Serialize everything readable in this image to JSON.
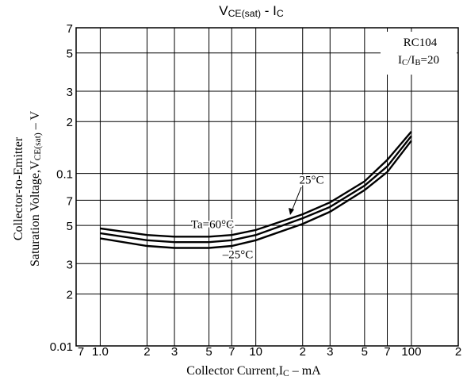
{
  "chart_data": {
    "type": "line",
    "title": [
      "V",
      "CE(sat)",
      "  -  I",
      "C"
    ],
    "x_label": [
      "Collector Current,I",
      "C",
      " – mA"
    ],
    "y_label": [
      [
        "Collector-to-Emitter"
      ],
      [
        "Saturation Voltage,V",
        "CE(sat)",
        " – V"
      ]
    ],
    "annotations": [
      [
        "RC104"
      ],
      [
        "I",
        "C",
        "/I",
        "B",
        "=20"
      ]
    ],
    "x": [
      1,
      2,
      3,
      5,
      7,
      10,
      20,
      30,
      50,
      70,
      100
    ],
    "series": [
      {
        "name": "Ta=60°C",
        "color": "#000000",
        "values": [
          0.048,
          0.044,
          0.043,
          0.043,
          0.044,
          0.047,
          0.058,
          0.068,
          0.09,
          0.12,
          0.175
        ]
      },
      {
        "name": "25°C",
        "color": "#000000",
        "values": [
          0.045,
          0.041,
          0.04,
          0.04,
          0.041,
          0.044,
          0.055,
          0.064,
          0.085,
          0.11,
          0.165
        ]
      },
      {
        "name": "–25°C",
        "color": "#000000",
        "values": [
          0.042,
          0.038,
          0.037,
          0.037,
          0.038,
          0.041,
          0.051,
          0.06,
          0.08,
          0.102,
          0.155
        ]
      }
    ],
    "xlim": [
      0.7,
      200
    ],
    "ylim": [
      0.01,
      0.7
    ],
    "x_log": true,
    "y_log": true,
    "grid": true,
    "xticks": [
      {
        "value": 0.7,
        "label": "7"
      },
      {
        "value": 1,
        "label": "1.0"
      },
      2,
      3,
      5,
      7,
      10,
      {
        "value": 20,
        "label": "2"
      },
      {
        "value": 30,
        "label": "3"
      },
      {
        "value": 50,
        "label": "5"
      },
      {
        "value": 70,
        "label": "7"
      },
      100,
      {
        "value": 200,
        "label": "2"
      }
    ],
    "yticks": [
      0.01,
      {
        "value": 0.02,
        "label": "2"
      },
      {
        "value": 0.03,
        "label": "3"
      },
      {
        "value": 0.05,
        "label": "5"
      },
      {
        "value": 0.07,
        "label": "7"
      },
      0.1,
      {
        "value": 0.2,
        "label": "2"
      },
      {
        "value": 0.3,
        "label": "3"
      },
      {
        "value": 0.5,
        "label": "5"
      },
      {
        "value": 0.7,
        "label": "7"
      }
    ]
  }
}
